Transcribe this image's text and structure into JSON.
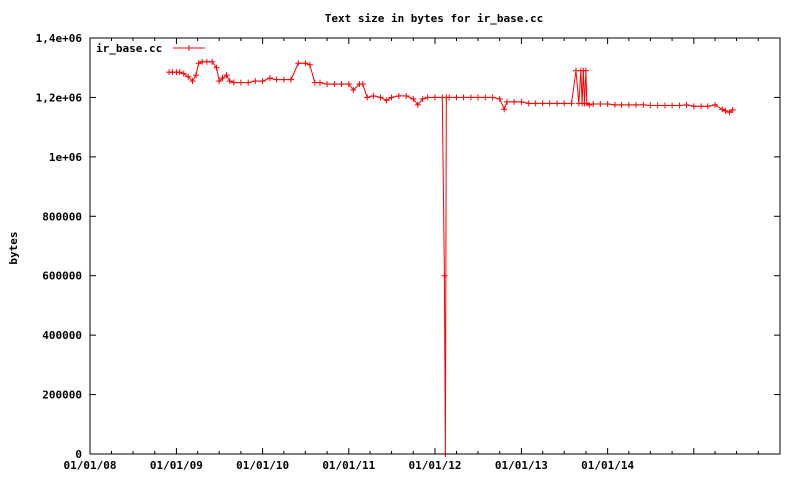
{
  "chart_data": {
    "type": "line",
    "title": "Text size in bytes for ir_base.cc",
    "xlabel": "",
    "ylabel": "bytes",
    "x_tick_labels": [
      "01/01/08",
      "01/01/09",
      "01/01/10",
      "01/01/11",
      "01/01/12",
      "01/01/13",
      "01/01/14"
    ],
    "x_ticks": [
      "2008-01-01",
      "2009-01-01",
      "2010-01-01",
      "2011-01-01",
      "2012-01-01",
      "2013-01-01",
      "2014-01-01"
    ],
    "xlim": [
      "2008-01-01",
      "2016-01-01"
    ],
    "ylim": [
      0,
      1400000
    ],
    "y_ticks": [
      0,
      200000,
      400000,
      600000,
      800000,
      1000000,
      1200000,
      1400000
    ],
    "y_tick_labels": [
      "0",
      "200000",
      "400000",
      "600000",
      "800000",
      "1e+06",
      "1,2e+06",
      "1,4e+06"
    ],
    "grid": false,
    "legend": "top-left",
    "series_color": "#ff0000",
    "series": [
      {
        "name": "ir_base.cc",
        "points": [
          [
            "2008-12-01",
            1285000
          ],
          [
            "2008-12-15",
            1285000
          ],
          [
            "2009-01-01",
            1285000
          ],
          [
            "2009-01-15",
            1285000
          ],
          [
            "2009-02-01",
            1280000
          ],
          [
            "2009-02-20",
            1270000
          ],
          [
            "2009-03-10",
            1255000
          ],
          [
            "2009-03-25",
            1275000
          ],
          [
            "2009-04-05",
            1315000
          ],
          [
            "2009-04-20",
            1320000
          ],
          [
            "2009-05-10",
            1320000
          ],
          [
            "2009-06-01",
            1320000
          ],
          [
            "2009-06-20",
            1300000
          ],
          [
            "2009-07-01",
            1255000
          ],
          [
            "2009-07-15",
            1265000
          ],
          [
            "2009-08-01",
            1275000
          ],
          [
            "2009-08-15",
            1255000
          ],
          [
            "2009-09-01",
            1250000
          ],
          [
            "2009-10-01",
            1250000
          ],
          [
            "2009-11-01",
            1250000
          ],
          [
            "2009-12-01",
            1255000
          ],
          [
            "2010-01-01",
            1255000
          ],
          [
            "2010-02-01",
            1265000
          ],
          [
            "2010-03-01",
            1260000
          ],
          [
            "2010-04-01",
            1260000
          ],
          [
            "2010-05-01",
            1260000
          ],
          [
            "2010-06-01",
            1315000
          ],
          [
            "2010-07-01",
            1315000
          ],
          [
            "2010-07-20",
            1310000
          ],
          [
            "2010-08-10",
            1250000
          ],
          [
            "2010-09-01",
            1250000
          ],
          [
            "2010-10-01",
            1245000
          ],
          [
            "2010-11-01",
            1245000
          ],
          [
            "2010-12-01",
            1245000
          ],
          [
            "2011-01-01",
            1245000
          ],
          [
            "2011-01-20",
            1225000
          ],
          [
            "2011-02-15",
            1245000
          ],
          [
            "2011-03-01",
            1245000
          ],
          [
            "2011-03-20",
            1200000
          ],
          [
            "2011-04-15",
            1205000
          ],
          [
            "2011-05-15",
            1200000
          ],
          [
            "2011-06-10",
            1190000
          ],
          [
            "2011-07-01",
            1200000
          ],
          [
            "2011-08-01",
            1205000
          ],
          [
            "2011-09-01",
            1205000
          ],
          [
            "2011-10-01",
            1195000
          ],
          [
            "2011-10-20",
            1175000
          ],
          [
            "2011-11-10",
            1195000
          ],
          [
            "2011-12-01",
            1200000
          ],
          [
            "2012-01-01",
            1200000
          ],
          [
            "2012-02-01",
            1200000
          ],
          [
            "2012-02-10",
            600000
          ],
          [
            "2012-02-14",
            0
          ],
          [
            "2012-02-18",
            1200000
          ],
          [
            "2012-03-01",
            1200000
          ],
          [
            "2012-04-01",
            1200000
          ],
          [
            "2012-05-01",
            1200000
          ],
          [
            "2012-06-01",
            1200000
          ],
          [
            "2012-07-01",
            1200000
          ],
          [
            "2012-08-01",
            1200000
          ],
          [
            "2012-09-01",
            1200000
          ],
          [
            "2012-10-01",
            1195000
          ],
          [
            "2012-10-20",
            1160000
          ],
          [
            "2012-11-01",
            1185000
          ],
          [
            "2012-12-01",
            1185000
          ],
          [
            "2013-01-01",
            1185000
          ],
          [
            "2013-02-01",
            1180000
          ],
          [
            "2013-03-01",
            1180000
          ],
          [
            "2013-04-01",
            1180000
          ],
          [
            "2013-05-01",
            1180000
          ],
          [
            "2013-06-01",
            1180000
          ],
          [
            "2013-07-01",
            1180000
          ],
          [
            "2013-08-01",
            1180000
          ],
          [
            "2013-08-20",
            1290000
          ],
          [
            "2013-09-01",
            1180000
          ],
          [
            "2013-09-10",
            1290000
          ],
          [
            "2013-09-15",
            1180000
          ],
          [
            "2013-09-20",
            1290000
          ],
          [
            "2013-09-25",
            1180000
          ],
          [
            "2013-10-01",
            1290000
          ],
          [
            "2013-10-05",
            1180000
          ],
          [
            "2013-10-15",
            1175000
          ],
          [
            "2013-11-01",
            1178000
          ],
          [
            "2013-12-01",
            1178000
          ],
          [
            "2014-01-01",
            1178000
          ],
          [
            "2014-02-01",
            1175000
          ],
          [
            "2014-03-01",
            1175000
          ],
          [
            "2014-04-01",
            1175000
          ],
          [
            "2014-05-01",
            1175000
          ],
          [
            "2014-06-01",
            1175000
          ],
          [
            "2014-07-01",
            1173000
          ],
          [
            "2014-08-01",
            1173000
          ],
          [
            "2014-09-01",
            1173000
          ],
          [
            "2014-10-01",
            1173000
          ],
          [
            "2014-11-01",
            1173000
          ],
          [
            "2014-12-01",
            1175000
          ],
          [
            "2015-01-01",
            1170000
          ],
          [
            "2015-02-01",
            1170000
          ],
          [
            "2015-03-01",
            1170000
          ],
          [
            "2015-04-01",
            1175000
          ],
          [
            "2015-05-01",
            1160000
          ],
          [
            "2015-05-15",
            1155000
          ],
          [
            "2015-06-01",
            1150000
          ],
          [
            "2015-06-15",
            1158000
          ]
        ]
      }
    ]
  }
}
